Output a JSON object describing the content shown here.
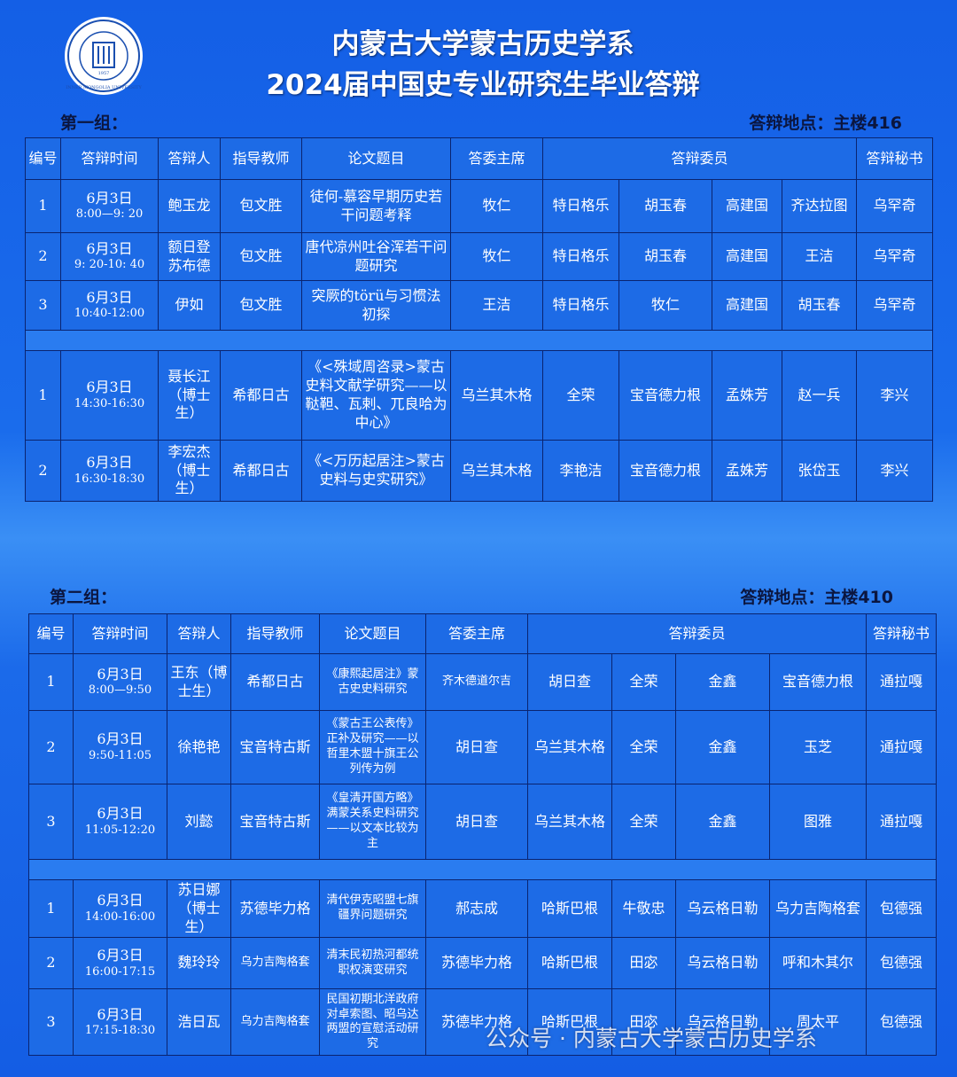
{
  "header": {
    "title_line1": "内蒙古大学蒙古历史学系",
    "title_line2": "2024届中国史专业研究生毕业答辩",
    "logo_text": "INNER MONGOLIA UNIVERSITY",
    "logo_year": "1957"
  },
  "groups": [
    {
      "label": "第一组：",
      "location": "答辩地点：主楼416",
      "headers": [
        "编号",
        "答辩时间",
        "答辩人",
        "指导教师",
        "论文题目",
        "答委主席",
        "答辩委员",
        "答辩秘书"
      ],
      "sessions": [
        [
          [
            "1",
            [
              "6月3日",
              "8:00—9: 20"
            ],
            "鲍玉龙",
            "包文胜",
            "徒何-慕容早期历史若干问题考释",
            "牧仁",
            "特日格乐",
            "胡玉春",
            "高建国",
            "齐达拉图",
            "乌罕奇"
          ],
          [
            "2",
            [
              "6月3日",
              "9: 20-10: 40"
            ],
            "额日登苏布德",
            "包文胜",
            "唐代凉州吐谷浑若干问题研究",
            "牧仁",
            "特日格乐",
            "胡玉春",
            "高建国",
            "王洁",
            "乌罕奇"
          ],
          [
            "3",
            [
              "6月3日",
              "10:40-12:00"
            ],
            "伊如",
            "包文胜",
            "突厥的törü与习惯法初探",
            "王洁",
            "特日格乐",
            "牧仁",
            "高建国",
            "胡玉春",
            "乌罕奇"
          ]
        ],
        [
          [
            "1",
            [
              "6月3日",
              "14:30-16:30"
            ],
            "聂长江（博士生）",
            "希都日古",
            "《<殊域周咨录>蒙古史料文献学研究——以鞑靼、瓦剌、兀良哈为中心》",
            "乌兰其木格",
            "全荣",
            "宝音德力根",
            "孟姝芳",
            "赵一兵",
            "李兴"
          ],
          [
            "2",
            [
              "6月3日",
              "16:30-18:30"
            ],
            "李宏杰（博士生）",
            "希都日古",
            "《<万历起居注>蒙古史料与史实研究》",
            "乌兰其木格",
            "李艳洁",
            "宝音德力根",
            "孟姝芳",
            "张岱玉",
            "李兴"
          ]
        ]
      ]
    },
    {
      "label": "第二组：",
      "location": "答辩地点：主楼410",
      "headers": [
        "编号",
        "答辩时间",
        "答辩人",
        "指导教师",
        "论文题目",
        "答委主席",
        "答辩委员",
        "答辩秘书"
      ],
      "sessions": [
        [
          [
            "1",
            [
              "6月3日",
              "8:00—9:50"
            ],
            "王东（博士生）",
            "希都日古",
            "《康熙起居注》蒙古史史料研究",
            "齐木德道尔吉",
            "胡日查",
            "全荣",
            "金鑫",
            "宝音德力根",
            "通拉嘎"
          ],
          [
            "2",
            [
              "6月3日",
              "9:50-11:05"
            ],
            "徐艳艳",
            "宝音特古斯",
            "《蒙古王公表传》正补及研究——以哲里木盟十旗王公列传为例",
            "胡日查",
            "乌兰其木格",
            "全荣",
            "金鑫",
            "玉芝",
            "通拉嘎"
          ],
          [
            "3",
            [
              "6月3日",
              "11:05-12:20"
            ],
            "刘懿",
            "宝音特古斯",
            "《皇清开国方略》满蒙关系史料研究——以文本比较为主",
            "胡日查",
            "乌兰其木格",
            "全荣",
            "金鑫",
            "图雅",
            "通拉嘎"
          ]
        ],
        [
          [
            "1",
            [
              "6月3日",
              "14:00-16:00"
            ],
            "苏日娜（博士生）",
            "苏德毕力格",
            "清代伊克昭盟七旗疆界问题研究",
            "郝志成",
            "哈斯巴根",
            "牛敬忠",
            "乌云格日勒",
            "乌力吉陶格套",
            "包德强"
          ],
          [
            "2",
            [
              "6月3日",
              "16:00-17:15"
            ],
            "魏玲玲",
            "乌力吉陶格套",
            "清末民初热河都统职权演变研究",
            "苏德毕力格",
            "哈斯巴根",
            "田宓",
            "乌云格日勒",
            "呼和木其尔",
            "包德强"
          ],
          [
            "3",
            [
              "6月3日",
              "17:15-18:30"
            ],
            "浩日瓦",
            "乌力吉陶格套",
            "民国初期北洋政府对卓索图、昭乌达两盟的宣慰活动研究",
            "苏德毕力格",
            "哈斯巴根",
            "田宓",
            "乌云格日勒",
            "周太平",
            "包德强"
          ]
        ]
      ]
    }
  ],
  "watermark": "公众号 · 内蒙古大学蒙古历史学系"
}
